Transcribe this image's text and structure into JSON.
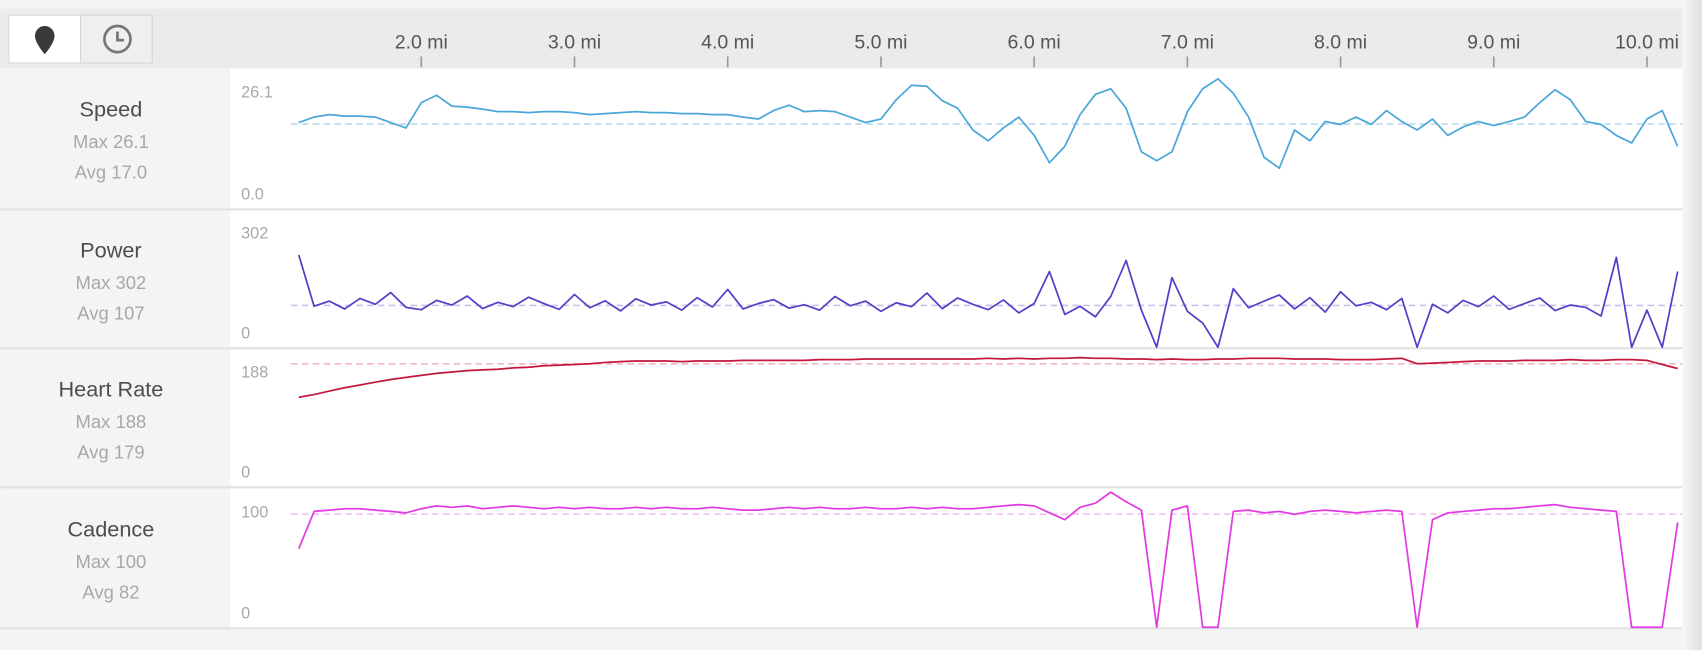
{
  "x_axis": {
    "xlim": [
      1.15,
      10.23
    ],
    "xticks": [
      {
        "value": 2,
        "label": "2.0 mi"
      },
      {
        "value": 3,
        "label": "3.0 mi"
      },
      {
        "value": 4,
        "label": "4.0 mi"
      },
      {
        "value": 5,
        "label": "5.0 mi"
      },
      {
        "value": 6,
        "label": "6.0 mi"
      },
      {
        "value": 7,
        "label": "7.0 mi"
      },
      {
        "value": 8,
        "label": "8.0 mi"
      },
      {
        "value": 9,
        "label": "9.0 mi"
      },
      {
        "value": 10,
        "label": "10.0 mi"
      }
    ]
  },
  "chart_data": [
    {
      "type": "line",
      "title": "Speed",
      "max_label": "Max 26.1",
      "avg_label": "Avg 17.0",
      "avg": 17.0,
      "color": "#4ca7d9",
      "avg_color": "#b8dbef",
      "ylim": [
        0,
        28
      ],
      "yticks": [
        {
          "value": 0,
          "label": "0.0"
        },
        26.1
      ],
      "x": [
        1.2,
        1.3,
        1.4,
        1.5,
        1.6,
        1.7,
        1.8,
        1.9,
        2.0,
        2.1,
        2.2,
        2.3,
        2.4,
        2.5,
        2.6,
        2.7,
        2.8,
        2.9,
        3.0,
        3.1,
        3.2,
        3.3,
        3.4,
        3.5,
        3.6,
        3.7,
        3.8,
        3.9,
        4.0,
        4.1,
        4.2,
        4.3,
        4.4,
        4.5,
        4.6,
        4.7,
        4.8,
        4.9,
        5.0,
        5.1,
        5.2,
        5.3,
        5.4,
        5.5,
        5.6,
        5.7,
        5.8,
        5.9,
        6.0,
        6.1,
        6.2,
        6.3,
        6.4,
        6.5,
        6.6,
        6.7,
        6.8,
        6.9,
        7.0,
        7.1,
        7.2,
        7.3,
        7.4,
        7.5,
        7.6,
        7.7,
        7.8,
        7.9,
        8.0,
        8.1,
        8.2,
        8.3,
        8.4,
        8.5,
        8.6,
        8.7,
        8.8,
        8.9,
        9.0,
        9.1,
        9.2,
        9.3,
        9.4,
        9.5,
        9.6,
        9.7,
        9.8,
        9.9,
        10.0,
        10.1,
        10.2
      ],
      "values": [
        17.3,
        18.4,
        18.9,
        18.6,
        18.6,
        18.4,
        17.3,
        16.2,
        21.3,
        22.8,
        20.6,
        20.4,
        20.0,
        19.5,
        19.5,
        19.3,
        19.5,
        19.5,
        19.3,
        18.9,
        19.1,
        19.3,
        19.5,
        19.3,
        19.3,
        19.1,
        19.1,
        18.9,
        18.9,
        18.4,
        18.0,
        19.7,
        20.8,
        19.5,
        19.7,
        19.5,
        18.4,
        17.3,
        18.0,
        21.9,
        24.8,
        24.6,
        21.7,
        20.2,
        15.8,
        13.6,
        16.2,
        18.4,
        14.7,
        9.2,
        12.5,
        18.9,
        23.0,
        24.1,
        20.2,
        11.4,
        9.6,
        11.4,
        19.5,
        24.1,
        26.1,
        23.2,
        18.4,
        10.3,
        8.1,
        15.8,
        13.6,
        17.5,
        16.9,
        18.4,
        16.9,
        19.7,
        17.5,
        15.8,
        18.0,
        14.7,
        16.4,
        17.5,
        16.7,
        17.5,
        18.4,
        21.3,
        23.9,
        21.9,
        17.5,
        16.9,
        14.7,
        13.2,
        18.0,
        19.7,
        12.5
      ]
    },
    {
      "type": "line",
      "title": "Power",
      "max_label": "Max 302",
      "avg_label": "Avg 107",
      "avg": 107,
      "color": "#5a3dc6",
      "avg_color": "#c9c0ec",
      "ylim": [
        0,
        350
      ],
      "yticks": [
        0,
        302
      ],
      "x": [
        1.2,
        1.3,
        1.4,
        1.5,
        1.6,
        1.7,
        1.8,
        1.9,
        2.0,
        2.1,
        2.2,
        2.3,
        2.4,
        2.5,
        2.6,
        2.7,
        2.8,
        2.9,
        3.0,
        3.1,
        3.2,
        3.3,
        3.4,
        3.5,
        3.6,
        3.7,
        3.8,
        3.9,
        4.0,
        4.1,
        4.2,
        4.3,
        4.4,
        4.5,
        4.6,
        4.7,
        4.8,
        4.9,
        5.0,
        5.1,
        5.2,
        5.3,
        5.4,
        5.5,
        5.6,
        5.7,
        5.8,
        5.9,
        6.0,
        6.1,
        6.2,
        6.3,
        6.4,
        6.5,
        6.6,
        6.7,
        6.8,
        6.9,
        7.0,
        7.1,
        7.2,
        7.3,
        7.4,
        7.5,
        7.6,
        7.7,
        7.8,
        7.9,
        8.0,
        8.1,
        8.2,
        8.3,
        8.4,
        8.5,
        8.6,
        8.7,
        8.8,
        8.9,
        9.0,
        9.1,
        9.2,
        9.3,
        9.4,
        9.5,
        9.6,
        9.7,
        9.8,
        9.9,
        10.0,
        10.1,
        10.2
      ],
      "values": [
        236,
        105,
        118,
        98,
        125,
        110,
        140,
        102,
        96,
        120,
        108,
        131,
        99,
        115,
        104,
        128,
        112,
        97,
        135,
        101,
        119,
        93,
        124,
        108,
        116,
        95,
        127,
        103,
        148,
        98,
        112,
        122,
        100,
        109,
        95,
        130,
        106,
        118,
        92,
        114,
        104,
        139,
        99,
        126,
        110,
        96,
        121,
        88,
        112,
        194,
        84,
        105,
        78,
        130,
        222,
        95,
        0,
        178,
        92,
        62,
        0,
        150,
        101,
        118,
        134,
        98,
        127,
        90,
        142,
        106,
        115,
        96,
        125,
        0,
        110,
        88,
        120,
        104,
        131,
        97,
        112,
        126,
        94,
        108,
        102,
        80,
        230,
        0,
        95,
        0,
        194
      ]
    },
    {
      "type": "line",
      "title": "Heart Rate",
      "max_label": "Max 188",
      "avg_label": "Avg 179",
      "avg": 179,
      "color": "#c3173d",
      "avg_color": "#f1b6c4",
      "ylim": [
        0,
        200
      ],
      "yticks": [
        0,
        188
      ],
      "x": [
        1.2,
        1.3,
        1.4,
        1.5,
        1.6,
        1.7,
        1.8,
        1.9,
        2.0,
        2.1,
        2.2,
        2.3,
        2.4,
        2.5,
        2.6,
        2.7,
        2.8,
        2.9,
        3.0,
        3.1,
        3.2,
        3.3,
        3.4,
        3.5,
        3.6,
        3.7,
        3.8,
        3.9,
        4.0,
        4.1,
        4.2,
        4.3,
        4.4,
        4.5,
        4.6,
        4.7,
        4.8,
        4.9,
        5.0,
        5.1,
        5.2,
        5.3,
        5.4,
        5.5,
        5.6,
        5.7,
        5.8,
        5.9,
        6.0,
        6.1,
        6.2,
        6.3,
        6.4,
        6.5,
        6.6,
        6.7,
        6.8,
        6.9,
        7.0,
        7.1,
        7.2,
        7.3,
        7.4,
        7.5,
        7.6,
        7.7,
        7.8,
        7.9,
        8.0,
        8.1,
        8.2,
        8.3,
        8.4,
        8.5,
        8.6,
        8.7,
        8.8,
        8.9,
        9.0,
        9.1,
        9.2,
        9.3,
        9.4,
        9.5,
        9.6,
        9.7,
        9.8,
        9.9,
        10.0,
        10.1,
        10.2
      ],
      "values": [
        130,
        134,
        139,
        144,
        148,
        152,
        156,
        159,
        162,
        165,
        167,
        169,
        170,
        171,
        173,
        174,
        176,
        177,
        178,
        179,
        181,
        182,
        183,
        183,
        183,
        182,
        183,
        183,
        183,
        184,
        184,
        184,
        184,
        184,
        185,
        185,
        185,
        186,
        186,
        186,
        186,
        186,
        186,
        186,
        186,
        187,
        186,
        187,
        186,
        187,
        187,
        188,
        187,
        187,
        186,
        186,
        185,
        186,
        185,
        185,
        186,
        186,
        187,
        187,
        187,
        186,
        186,
        186,
        185,
        185,
        185,
        186,
        187,
        179,
        180,
        181,
        182,
        183,
        183,
        183,
        184,
        184,
        184,
        185,
        184,
        184,
        185,
        185,
        184,
        178,
        172
      ]
    },
    {
      "type": "line",
      "title": "Cadence",
      "max_label": "Max 100",
      "avg_label": "Avg 82",
      "avg": 82,
      "color": "#e23be3",
      "avg_color": "#f3bff3",
      "ylim": [
        0,
        100
      ],
      "yticks": [
        0,
        100
      ],
      "x": [
        1.2,
        1.3,
        1.4,
        1.5,
        1.6,
        1.7,
        1.8,
        1.9,
        2.0,
        2.1,
        2.2,
        2.3,
        2.4,
        2.5,
        2.6,
        2.7,
        2.8,
        2.9,
        3.0,
        3.1,
        3.2,
        3.3,
        3.4,
        3.5,
        3.6,
        3.7,
        3.8,
        3.9,
        4.0,
        4.1,
        4.2,
        4.3,
        4.4,
        4.5,
        4.6,
        4.7,
        4.8,
        4.9,
        5.0,
        5.1,
        5.2,
        5.3,
        5.4,
        5.5,
        5.6,
        5.7,
        5.8,
        5.9,
        6.0,
        6.1,
        6.2,
        6.3,
        6.4,
        6.5,
        6.6,
        6.7,
        6.8,
        6.9,
        7.0,
        7.1,
        7.2,
        7.3,
        7.4,
        7.5,
        7.6,
        7.7,
        7.8,
        7.9,
        8.0,
        8.1,
        8.2,
        8.3,
        8.4,
        8.5,
        8.6,
        8.7,
        8.8,
        8.9,
        9.0,
        9.1,
        9.2,
        9.3,
        9.4,
        9.5,
        9.6,
        9.7,
        9.8,
        9.9,
        10.0,
        10.1,
        10.2
      ],
      "values": [
        57,
        84,
        85,
        86,
        86,
        85,
        84,
        83,
        86,
        88,
        87,
        88,
        86,
        87,
        88,
        87,
        86,
        87,
        86,
        87,
        86,
        86,
        87,
        86,
        87,
        86,
        86,
        87,
        86,
        85,
        85,
        86,
        87,
        86,
        87,
        86,
        86,
        87,
        86,
        86,
        87,
        86,
        87,
        86,
        86,
        87,
        88,
        89,
        88,
        83,
        78,
        87,
        90,
        98,
        91,
        85,
        0,
        85,
        88,
        0,
        0,
        84,
        85,
        83,
        84,
        82,
        84,
        85,
        84,
        83,
        84,
        85,
        84,
        0,
        78,
        83,
        84,
        85,
        86,
        86,
        87,
        88,
        89,
        87,
        86,
        85,
        84,
        0,
        0,
        0,
        76
      ]
    }
  ]
}
